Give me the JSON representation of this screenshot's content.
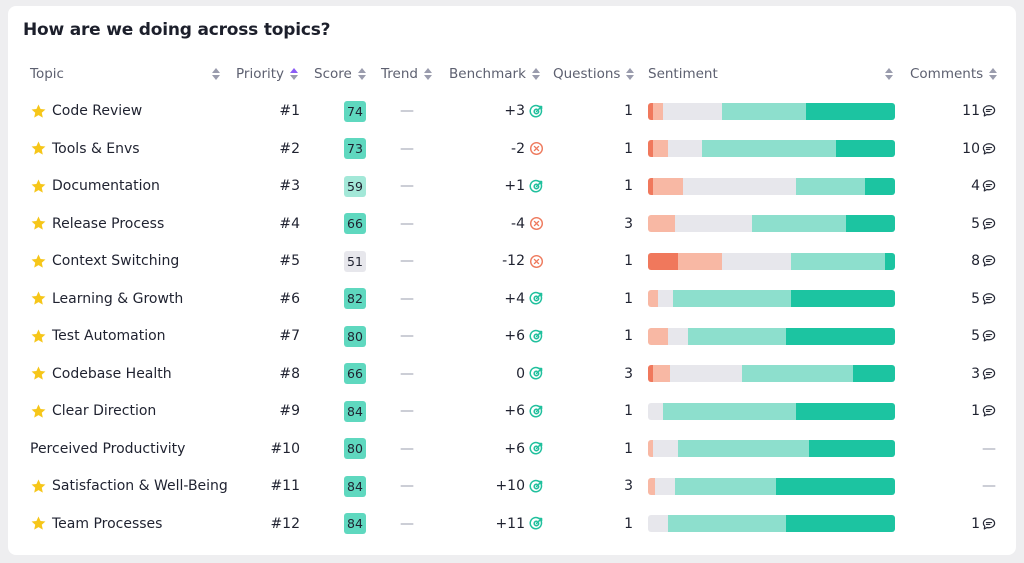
{
  "title": "How are we doing across topics?",
  "columns": {
    "topic": "Topic",
    "priority": "Priority",
    "score": "Score",
    "trend": "Trend",
    "benchmark": "Benchmark",
    "questions": "Questions",
    "sentiment": "Sentiment",
    "comments": "Comments"
  },
  "colors": {
    "sent_strong_neg": "#f0785c",
    "sent_neg": "#f8b8a4",
    "sent_neutral": "#e7e7ec",
    "sent_pos": "#8ddfcd",
    "sent_strong_pos": "#1cc4a1",
    "score_high": "#5fd8bf",
    "score_mid": "#a3e8d8",
    "score_low": "#e7e7ec",
    "bench_pos": "#20c09d",
    "bench_neg": "#ee7a5d",
    "star": "#f6c619"
  },
  "rows": [
    {
      "topic": "Code Review",
      "starred": true,
      "priority": "#1",
      "score": "74",
      "score_level": "high",
      "trend": "—",
      "benchmark": "+3",
      "bench_dir": "pos",
      "questions": "1",
      "sentiment": [
        0.02,
        0.04,
        0.24,
        0.34,
        0.36
      ],
      "comments": "11"
    },
    {
      "topic": "Tools & Envs",
      "starred": true,
      "priority": "#2",
      "score": "73",
      "score_level": "high",
      "trend": "—",
      "benchmark": "-2",
      "bench_dir": "neg",
      "questions": "1",
      "sentiment": [
        0.02,
        0.06,
        0.14,
        0.54,
        0.24
      ],
      "comments": "10"
    },
    {
      "topic": "Documentation",
      "starred": true,
      "priority": "#3",
      "score": "59",
      "score_level": "mid",
      "trend": "—",
      "benchmark": "+1",
      "bench_dir": "pos",
      "questions": "1",
      "sentiment": [
        0.02,
        0.12,
        0.46,
        0.28,
        0.12
      ],
      "comments": "4"
    },
    {
      "topic": "Release Process",
      "starred": true,
      "priority": "#4",
      "score": "66",
      "score_level": "high",
      "trend": "—",
      "benchmark": "-4",
      "bench_dir": "neg",
      "questions": "3",
      "sentiment": [
        0,
        0.11,
        0.31,
        0.38,
        0.2
      ],
      "comments": "5"
    },
    {
      "topic": "Context Switching",
      "starred": true,
      "priority": "#5",
      "score": "51",
      "score_level": "low",
      "trend": "—",
      "benchmark": "-12",
      "bench_dir": "neg",
      "questions": "1",
      "sentiment": [
        0.12,
        0.18,
        0.28,
        0.38,
        0.04
      ],
      "comments": "8"
    },
    {
      "topic": "Learning & Growth",
      "starred": true,
      "priority": "#6",
      "score": "82",
      "score_level": "high",
      "trend": "—",
      "benchmark": "+4",
      "bench_dir": "pos",
      "questions": "1",
      "sentiment": [
        0,
        0.04,
        0.06,
        0.48,
        0.42
      ],
      "comments": "5"
    },
    {
      "topic": "Test Automation",
      "starred": true,
      "priority": "#7",
      "score": "80",
      "score_level": "high",
      "trend": "—",
      "benchmark": "+6",
      "bench_dir": "pos",
      "questions": "1",
      "sentiment": [
        0,
        0.08,
        0.08,
        0.4,
        0.44
      ],
      "comments": "5"
    },
    {
      "topic": "Codebase Health",
      "starred": true,
      "priority": "#8",
      "score": "66",
      "score_level": "high",
      "trend": "—",
      "benchmark": "0",
      "bench_dir": "pos",
      "questions": "3",
      "sentiment": [
        0.02,
        0.07,
        0.29,
        0.45,
        0.17
      ],
      "comments": "3"
    },
    {
      "topic": "Clear Direction",
      "starred": true,
      "priority": "#9",
      "score": "84",
      "score_level": "high",
      "trend": "—",
      "benchmark": "+6",
      "bench_dir": "pos",
      "questions": "1",
      "sentiment": [
        0,
        0,
        0.06,
        0.54,
        0.4
      ],
      "comments": "1"
    },
    {
      "topic": "Perceived Productivity",
      "starred": false,
      "priority": "#10",
      "score": "80",
      "score_level": "high",
      "trend": "—",
      "benchmark": "+6",
      "bench_dir": "pos",
      "questions": "1",
      "sentiment": [
        0,
        0.02,
        0.1,
        0.53,
        0.35
      ],
      "comments": "—"
    },
    {
      "topic": "Satisfaction & Well-Being",
      "starred": true,
      "priority": "#11",
      "score": "84",
      "score_level": "high",
      "trend": "—",
      "benchmark": "+10",
      "bench_dir": "pos",
      "questions": "3",
      "sentiment": [
        0,
        0.03,
        0.08,
        0.41,
        0.48
      ],
      "comments": "—"
    },
    {
      "topic": "Team Processes",
      "starred": true,
      "priority": "#12",
      "score": "84",
      "score_level": "high",
      "trend": "—",
      "benchmark": "+11",
      "bench_dir": "pos",
      "questions": "1",
      "sentiment": [
        0,
        0,
        0.08,
        0.48,
        0.44
      ],
      "comments": "1"
    }
  ]
}
